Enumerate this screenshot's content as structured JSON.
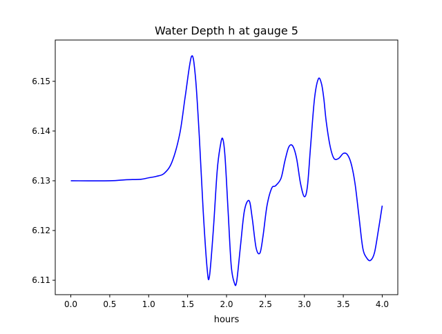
{
  "chart_data": {
    "type": "line",
    "title": "Water Depth h at gauge 5",
    "xlabel": "hours",
    "ylabel": "",
    "xlim": [
      -0.2,
      4.2
    ],
    "ylim": [
      6.1071,
      6.1583
    ],
    "xticks": [
      0.0,
      0.5,
      1.0,
      1.5,
      2.0,
      2.5,
      3.0,
      3.5,
      4.0
    ],
    "xtick_labels": [
      "0.0",
      "0.5",
      "1.0",
      "1.5",
      "2.0",
      "2.5",
      "3.0",
      "3.5",
      "4.0"
    ],
    "yticks": [
      6.11,
      6.12,
      6.13,
      6.14,
      6.15
    ],
    "ytick_labels": [
      "6.11",
      "6.12",
      "6.13",
      "6.14",
      "6.15"
    ],
    "grid": false,
    "legend": "none",
    "series": [
      {
        "color": "#0000ff",
        "x": [
          0.0,
          0.5,
          0.7,
          0.9,
          1.0,
          1.1,
          1.2,
          1.3,
          1.4,
          1.47,
          1.55,
          1.6,
          1.65,
          1.7,
          1.75,
          1.78,
          1.83,
          1.88,
          1.92,
          1.95,
          1.98,
          2.02,
          2.06,
          2.1,
          2.13,
          2.18,
          2.23,
          2.29,
          2.33,
          2.38,
          2.43,
          2.47,
          2.52,
          2.58,
          2.63,
          2.7,
          2.75,
          2.8,
          2.85,
          2.9,
          2.95,
          3.0,
          3.04,
          3.08,
          3.13,
          3.18,
          3.22,
          3.25,
          3.28,
          3.33,
          3.38,
          3.44,
          3.5,
          3.55,
          3.6,
          3.65,
          3.7,
          3.75,
          3.8,
          3.85,
          3.9,
          3.95,
          4.0
        ],
        "y": [
          6.13,
          6.13,
          6.1302,
          6.1303,
          6.1306,
          6.1309,
          6.1315,
          6.1338,
          6.1395,
          6.147,
          6.155,
          6.151,
          6.139,
          6.124,
          6.1125,
          6.1107,
          6.12,
          6.132,
          6.137,
          6.1385,
          6.135,
          6.124,
          6.113,
          6.1095,
          6.1097,
          6.117,
          6.124,
          6.126,
          6.1225,
          6.1165,
          6.1155,
          6.119,
          6.125,
          6.1285,
          6.129,
          6.1305,
          6.134,
          6.1368,
          6.137,
          6.1345,
          6.1295,
          6.1268,
          6.129,
          6.137,
          6.1465,
          6.1505,
          6.1495,
          6.1465,
          6.142,
          6.137,
          6.1345,
          6.1345,
          6.1355,
          6.1353,
          6.1335,
          6.1295,
          6.123,
          6.1165,
          6.1145,
          6.114,
          6.1155,
          6.12,
          6.125
        ]
      }
    ]
  }
}
